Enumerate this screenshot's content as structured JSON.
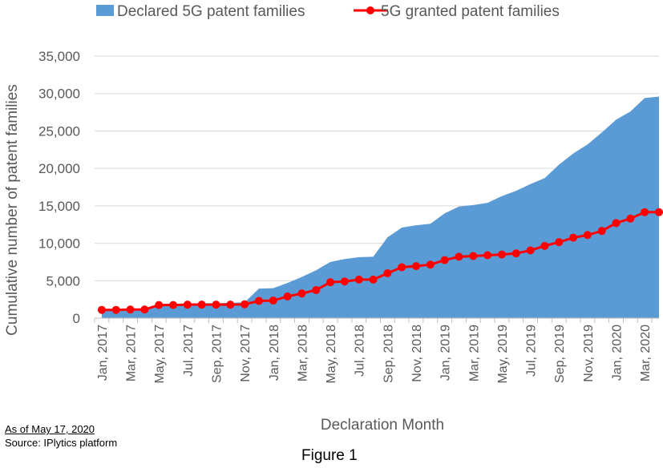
{
  "chart_data": {
    "type": "area",
    "title": "",
    "xlabel": "Declaration Month",
    "ylabel": "Cumulative number of patent families",
    "ylim": [
      0,
      35000
    ],
    "yticks": [
      0,
      5000,
      10000,
      15000,
      20000,
      25000,
      30000,
      35000
    ],
    "ytick_labels": [
      "0",
      "5,000",
      "10,000",
      "15,000",
      "20,000",
      "25,000",
      "30,000",
      "35,000"
    ],
    "grid": true,
    "legend_position": "top",
    "x": [
      "Jan, 2017",
      "Feb, 2017",
      "Mar, 2017",
      "Apr, 2017",
      "May, 2017",
      "Jun, 2017",
      "Jul, 2017",
      "Aug, 2017",
      "Sep, 2017",
      "Oct, 2017",
      "Nov, 2017",
      "Dec, 2017",
      "Jan, 2018",
      "Feb, 2018",
      "Mar, 2018",
      "Apr, 2018",
      "May, 2018",
      "Jun, 2018",
      "Jul, 2018",
      "Aug, 2018",
      "Sep, 2018",
      "Oct, 2018",
      "Nov, 2018",
      "Dec, 2018",
      "Jan, 2019",
      "Feb, 2019",
      "Mar, 2019",
      "Apr, 2019",
      "May, 2019",
      "Jun, 2019",
      "Jul, 2019",
      "Aug, 2019",
      "Sep, 2019",
      "Oct, 2019",
      "Nov, 2019",
      "Dec, 2019",
      "Jan, 2020",
      "Feb, 2020",
      "Mar, 2020",
      "Apr, 2020"
    ],
    "x_tick_labels": [
      "Jan, 2017",
      "Mar, 2017",
      "May, 2017",
      "Jul, 2017",
      "Sep, 2017",
      "Nov, 2017",
      "Jan, 2018",
      "Mar, 2018",
      "May, 2018",
      "Jul, 2018",
      "Sep, 2018",
      "Nov, 2018",
      "Jan, 2019",
      "Mar, 2019",
      "May, 2019",
      "Jul, 2019",
      "Sep, 2019",
      "Nov, 2019",
      "Jan, 2020",
      "Mar, 2020"
    ],
    "series": [
      {
        "name": "Declared 5G patent families",
        "type": "area",
        "color": "#5b9bd5",
        "values": [
          1100,
          1150,
          1200,
          1250,
          1850,
          1900,
          1950,
          2000,
          2000,
          2050,
          2100,
          3950,
          4000,
          4700,
          5500,
          6400,
          7500,
          7900,
          8150,
          8200,
          10800,
          12100,
          12400,
          12600,
          14000,
          14900,
          15100,
          15400,
          16300,
          17000,
          17900,
          18700,
          20500,
          22000,
          23200,
          24800,
          26500,
          27600,
          29400,
          29600
        ]
      },
      {
        "name": "5G granted patent families",
        "type": "line",
        "color": "#ff0000",
        "values": [
          1100,
          1100,
          1150,
          1150,
          1750,
          1750,
          1800,
          1800,
          1800,
          1800,
          1850,
          2300,
          2350,
          2900,
          3300,
          3750,
          4800,
          4900,
          5150,
          5150,
          6000,
          6800,
          6950,
          7150,
          7750,
          8200,
          8300,
          8400,
          8500,
          8650,
          9050,
          9650,
          10150,
          10750,
          11100,
          11650,
          12700,
          13300,
          14150,
          14150
        ]
      }
    ]
  },
  "notes": {
    "as_of": "As of May 17, 2020",
    "source": "Source: IPlytics platform"
  },
  "caption": "Figure 1",
  "colors": {
    "area": "#5b9bd5",
    "line": "#ff0000",
    "grid": "#d9d9d9"
  }
}
